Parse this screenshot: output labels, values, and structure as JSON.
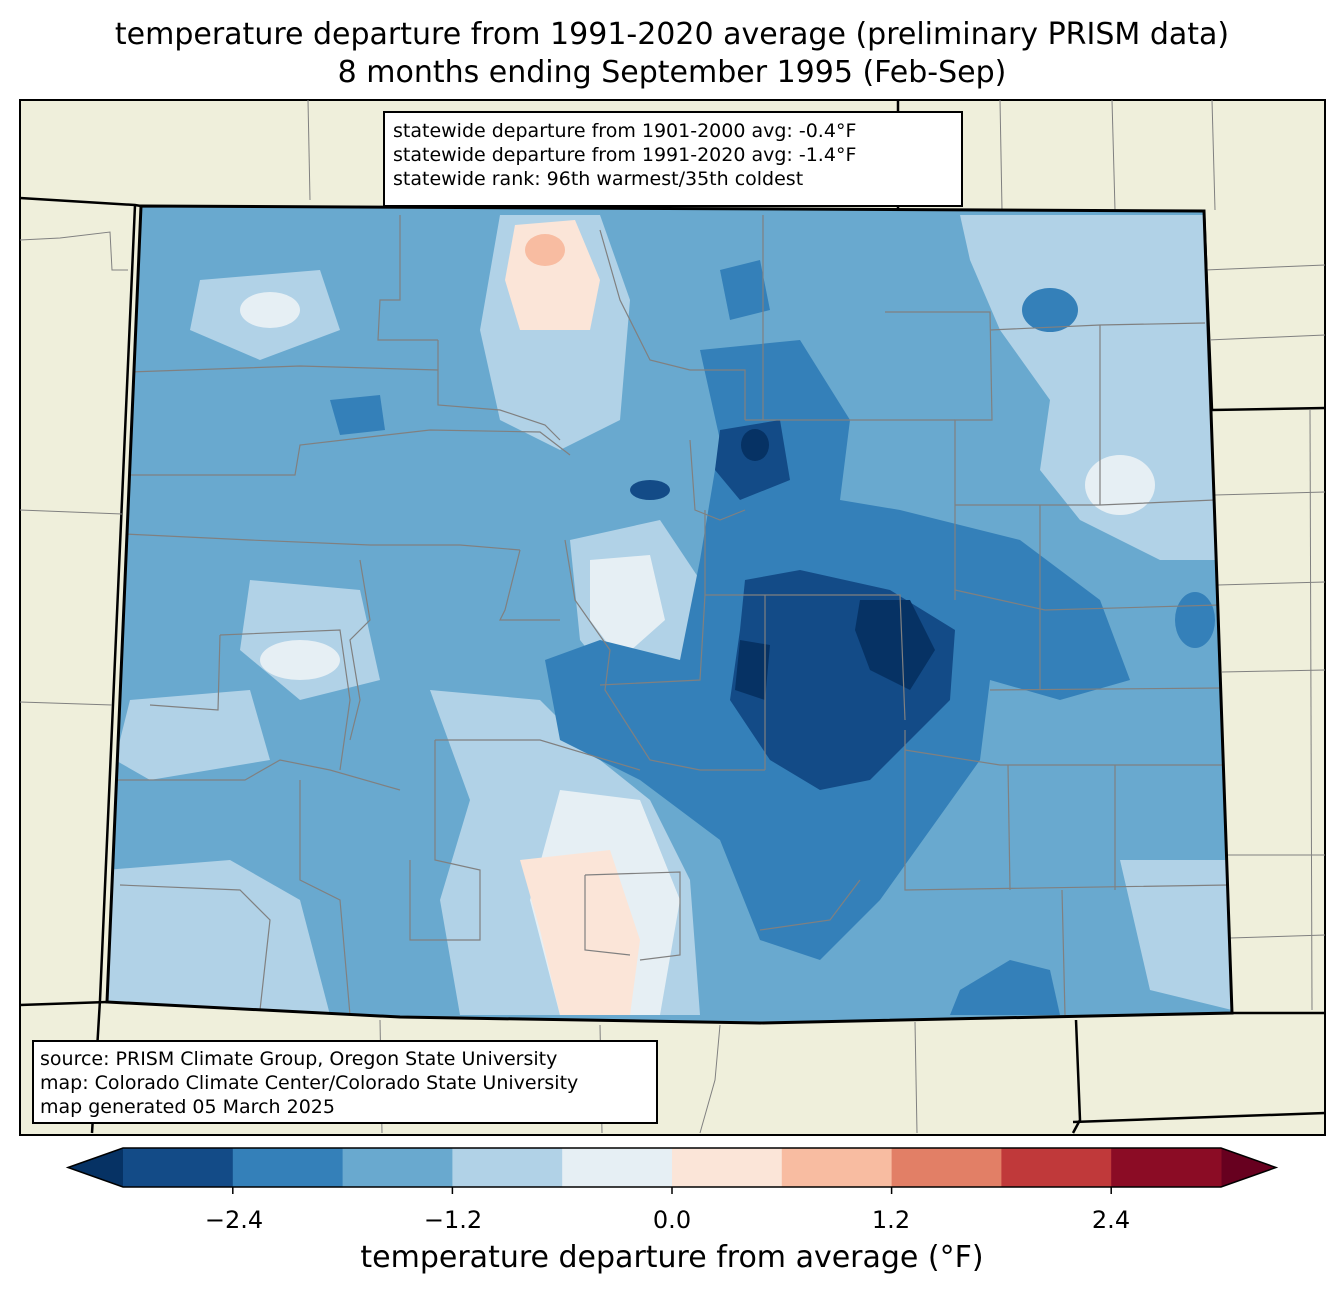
{
  "title": {
    "line1": "temperature departure from 1991-2020 average (preliminary PRISM data)",
    "line2": "8 months ending September 1995 (Feb-Sep)"
  },
  "stats": {
    "line1": "statewide departure from 1901-2000 avg: -0.4°F",
    "line2": "statewide departure from 1991-2020 avg: -1.4°F",
    "line3": "statewide rank: 96th warmest/35th coldest"
  },
  "source": {
    "line1": "source: PRISM Climate Group, Oregon State University",
    "line2": "map: Colorado Climate Center/Colorado State University",
    "line3": "map generated 05 March 2025"
  },
  "colorbar": {
    "label": "temperature departure from average (°F)",
    "ticks": [
      "−2.4",
      "−1.2",
      "0.0",
      "1.2",
      "2.4"
    ],
    "bins": [
      -3.0,
      -2.4,
      -1.8,
      -1.2,
      -0.6,
      0.0,
      0.6,
      1.2,
      1.8,
      2.4,
      3.0
    ],
    "colors": [
      "#134b87",
      "#3480b9",
      "#69a9cf",
      "#b1d2e7",
      "#e6eff4",
      "#fbe5d8",
      "#f8bca1",
      "#e27f66",
      "#c0393a",
      "#8b0c25"
    ],
    "under_color": "#063264",
    "over_color": "#67001f"
  },
  "map_colors": {
    "land": "#efefdb",
    "boundary": "#000000",
    "county_line": "#808080"
  }
}
